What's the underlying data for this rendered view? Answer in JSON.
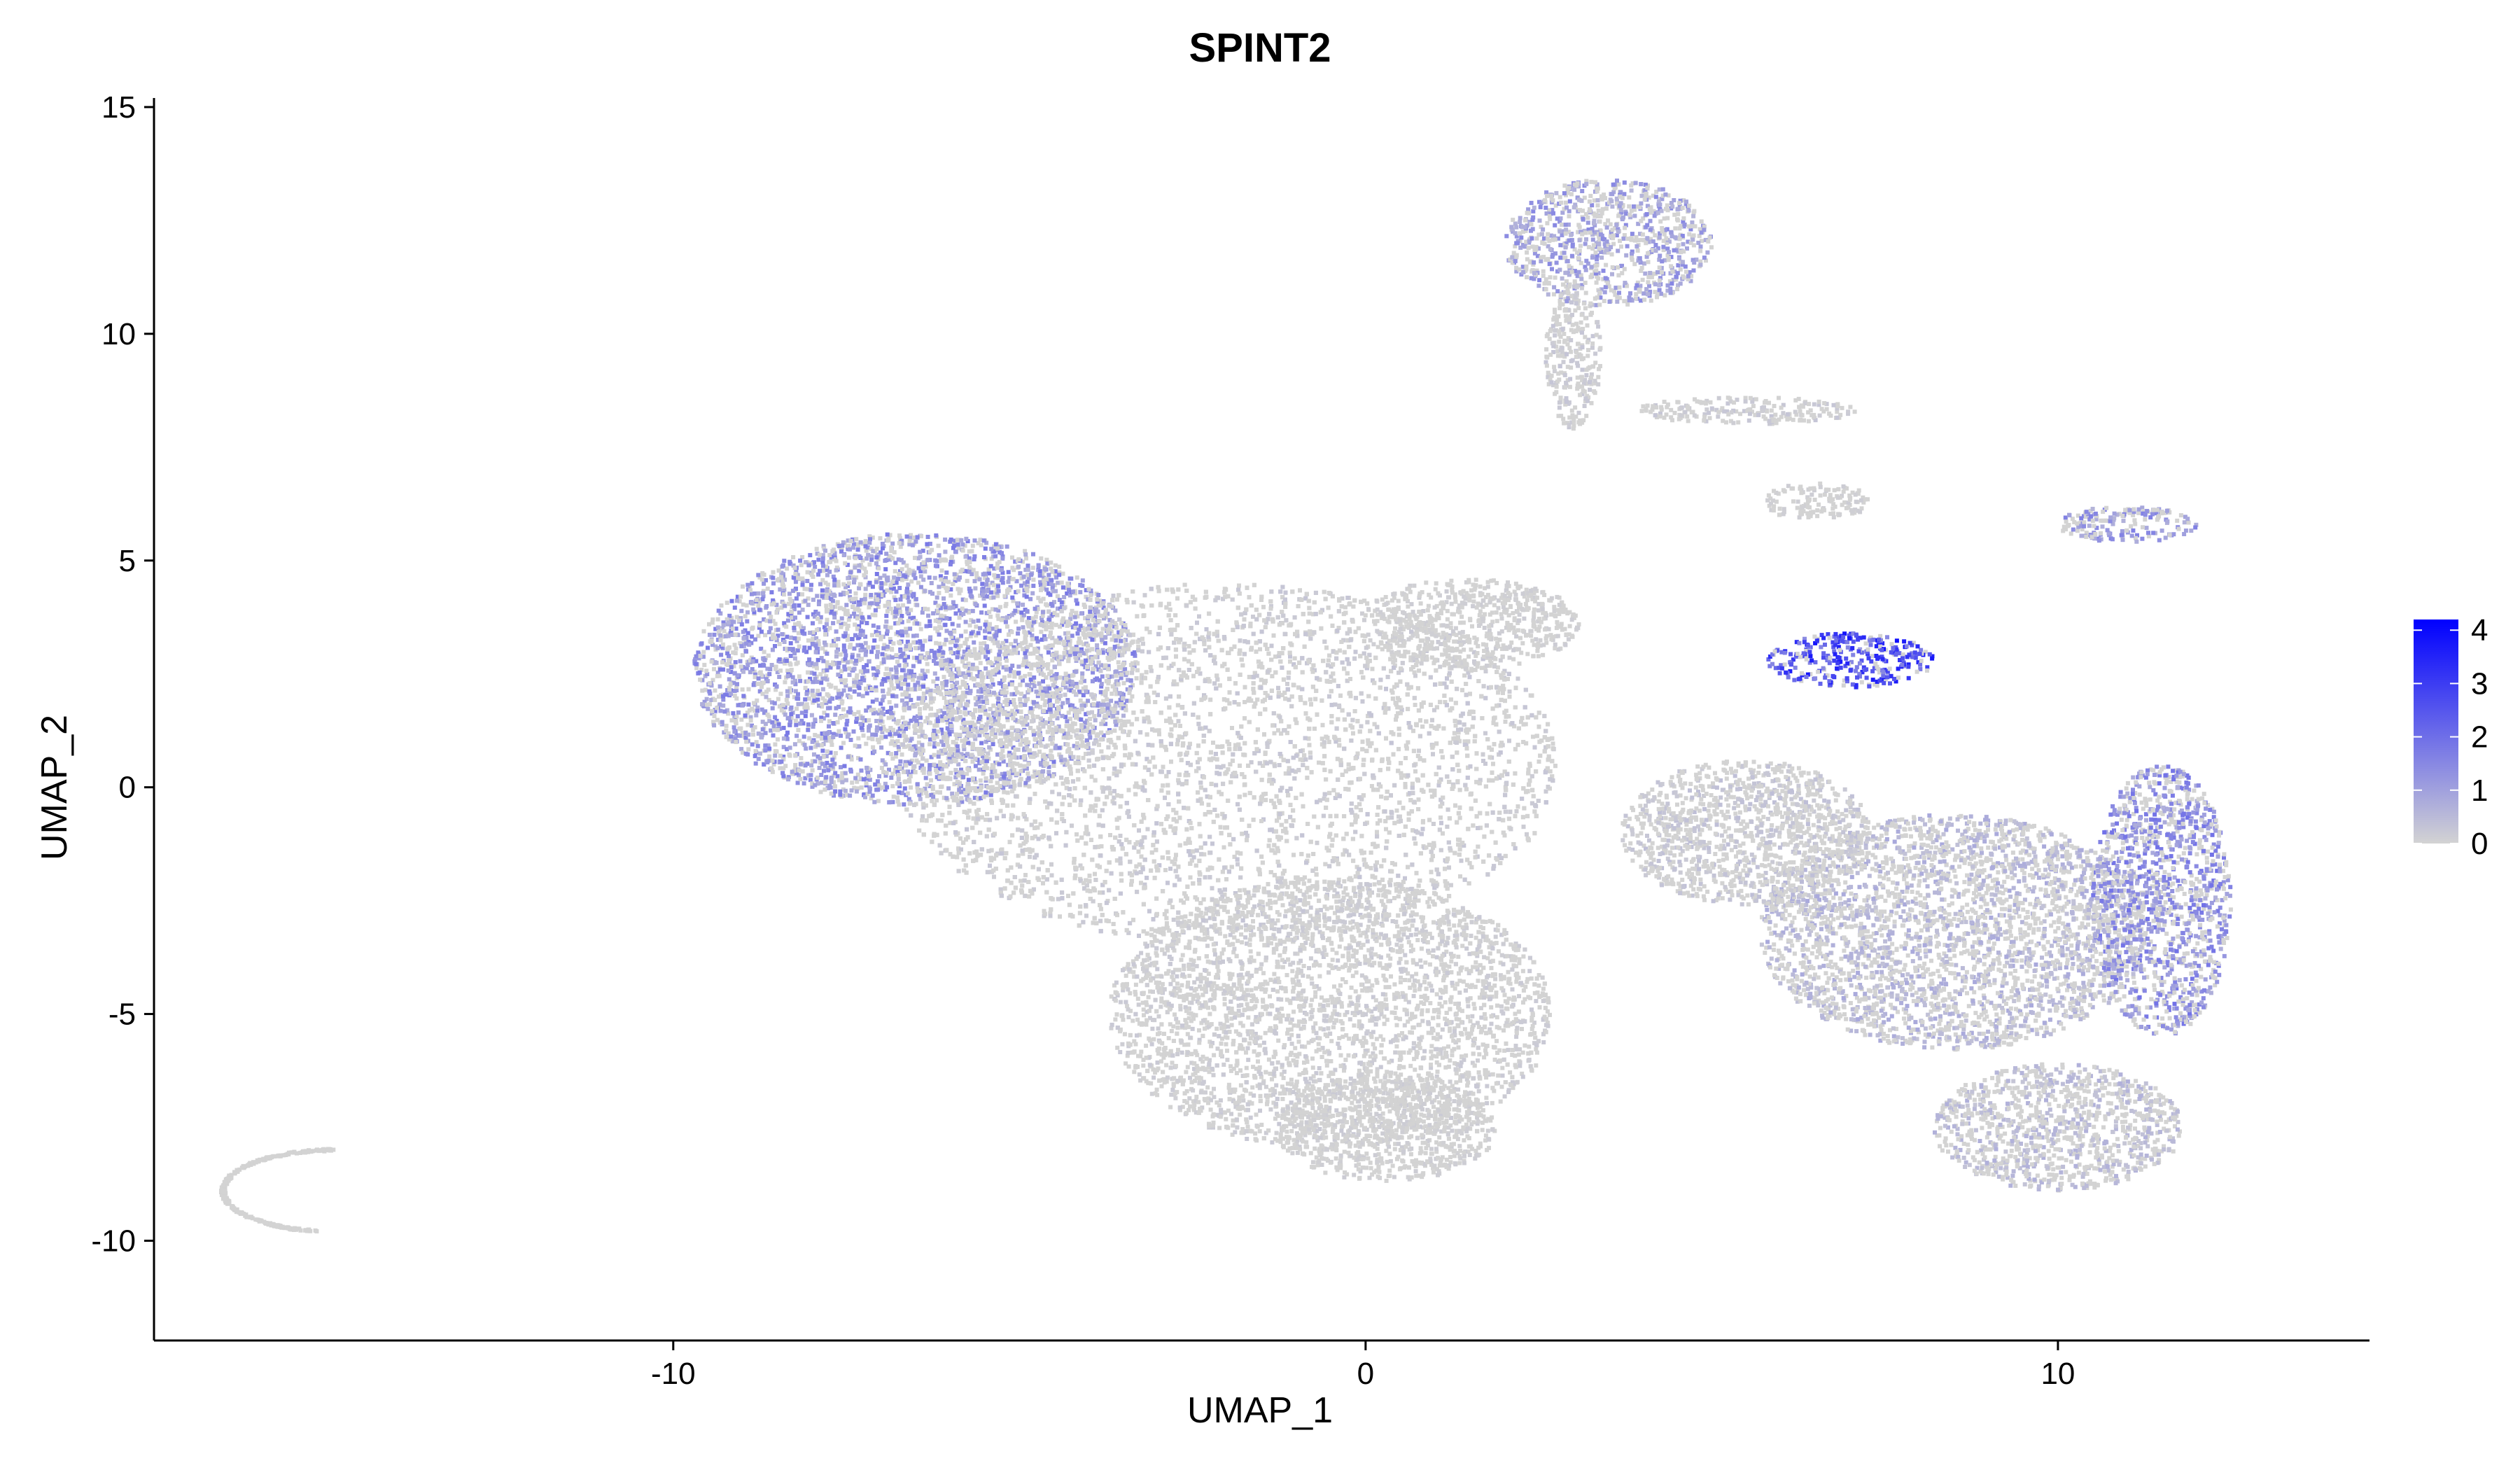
{
  "chart_data": {
    "type": "scatter",
    "title": "SPINT2",
    "xlabel": "UMAP_1",
    "ylabel": "UMAP_2",
    "xlim": [
      -17.5,
      14.5
    ],
    "ylim": [
      -12.2,
      15.2
    ],
    "xticks": [
      -10,
      0,
      10
    ],
    "yticks": [
      -10,
      -5,
      0,
      5,
      10,
      15
    ],
    "grid": false,
    "point_color_low": "#D3D3D3",
    "point_color_high": "#0000FF",
    "colorbar": {
      "min": 0,
      "max": 4.2,
      "ticks": [
        0,
        1,
        2,
        3,
        4
      ],
      "placement": "right"
    },
    "clusters": [
      {
        "region": "left main lobe",
        "cx": -6.5,
        "cy": 2.6,
        "rx": 3.2,
        "ry": 3.0,
        "expression": 1.3
      },
      {
        "region": "central body",
        "cx": -2.0,
        "cy": 0.5,
        "rx": 4.8,
        "ry": 4.0,
        "expression": 0.2
      },
      {
        "region": "lower central body",
        "cx": -0.5,
        "cy": -5.0,
        "rx": 3.2,
        "ry": 3.0,
        "expression": 0.15
      },
      {
        "region": "lower stem",
        "cx": 0.3,
        "cy": -7.5,
        "rx": 1.6,
        "ry": 1.2,
        "expression": 0.1
      },
      {
        "region": "neck to junction",
        "cx": 1.5,
        "cy": 3.6,
        "rx": 1.6,
        "ry": 1.0,
        "expression": 0.1
      },
      {
        "region": "right lower arm",
        "cx": 8.5,
        "cy": -3.2,
        "rx": 2.8,
        "ry": 2.6,
        "expression": 0.6
      },
      {
        "region": "right lower arm tip",
        "cx": 11.5,
        "cy": -2.5,
        "rx": 1.0,
        "ry": 3.0,
        "expression": 1.4
      },
      {
        "region": "right lower arm base",
        "cx": 10.0,
        "cy": -7.5,
        "rx": 1.8,
        "ry": 1.4,
        "expression": 0.5
      },
      {
        "region": "diagonal band",
        "cx": 5.5,
        "cy": -1.0,
        "rx": 1.8,
        "ry": 1.6,
        "expression": 0.3
      },
      {
        "region": "upper island",
        "cx": 3.5,
        "cy": 12.0,
        "rx": 1.5,
        "ry": 1.4,
        "expression": 1.1
      },
      {
        "region": "upper island stem",
        "cx": 3.0,
        "cy": 9.5,
        "rx": 0.4,
        "ry": 1.6,
        "expression": 0.2
      },
      {
        "region": "mid arc",
        "cx": 5.5,
        "cy": 8.3,
        "rx": 1.6,
        "ry": 0.3,
        "expression": 0.2
      },
      {
        "region": "small blob",
        "cx": 6.5,
        "cy": 6.3,
        "rx": 0.8,
        "ry": 0.4,
        "expression": 0.1
      },
      {
        "region": "high expression streak",
        "cx": 7.0,
        "cy": 2.8,
        "rx": 1.2,
        "ry": 0.6,
        "expression": 2.8
      },
      {
        "region": "right small streak",
        "cx": 11.0,
        "cy": 5.8,
        "rx": 1.0,
        "ry": 0.4,
        "expression": 1.2
      },
      {
        "region": "far left arc",
        "cx": -15.3,
        "cy": -9.8,
        "rx": 1.6,
        "ry": 0.4,
        "expression": 0.0
      }
    ]
  }
}
